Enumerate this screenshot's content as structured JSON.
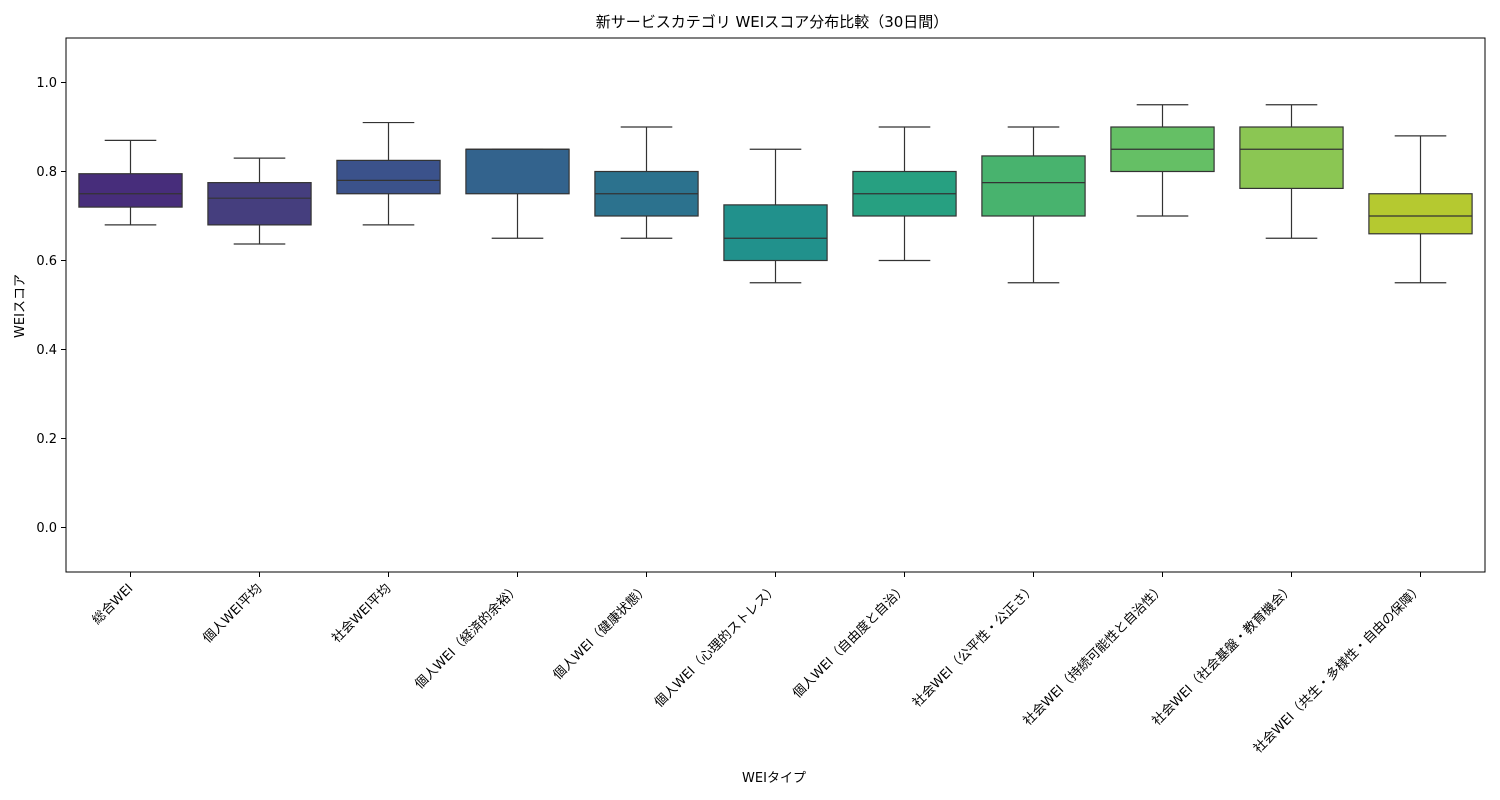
{
  "chart_data": {
    "type": "box",
    "title": "新サービスカテゴリ WEIスコア分布比較（30日間）",
    "xlabel": "WEIタイプ",
    "ylabel": "WEIスコア",
    "ylim": [
      -0.1,
      1.1
    ],
    "yticks": [
      0.0,
      0.2,
      0.4,
      0.6,
      0.8,
      1.0
    ],
    "yticklabels": [
      "0.0",
      "0.2",
      "0.4",
      "0.6",
      "0.8",
      "1.0"
    ],
    "grid": false,
    "legend": "none",
    "categories": [
      "総合WEI",
      "個人WEI平均",
      "社会WEI平均",
      "個人WEI（経済的余裕）",
      "個人WEI（健康状態）",
      "個人WEI（心理的ストレス）",
      "個人WEI（自由度と自治）",
      "社会WEI（公平性・公正さ）",
      "社会WEI（持続可能性と自治性）",
      "社会WEI（社会基盤・教育機会）",
      "社会WEI（共生・多様性・自由の保障）"
    ],
    "boxes": [
      {
        "whisker_low": 0.68,
        "q1": 0.72,
        "median": 0.75,
        "q3": 0.795,
        "whisker_high": 0.87,
        "color": "#472d7b"
      },
      {
        "whisker_low": 0.637,
        "q1": 0.68,
        "median": 0.74,
        "q3": 0.775,
        "whisker_high": 0.83,
        "color": "#453e7e"
      },
      {
        "whisker_low": 0.68,
        "q1": 0.75,
        "median": 0.78,
        "q3": 0.825,
        "whisker_high": 0.91,
        "color": "#3b528b"
      },
      {
        "whisker_low": 0.65,
        "q1": 0.75,
        "median": 0.85,
        "q3": 0.85,
        "whisker_high": 0.85,
        "color": "#33638d"
      },
      {
        "whisker_low": 0.65,
        "q1": 0.7,
        "median": 0.75,
        "q3": 0.8,
        "whisker_high": 0.9,
        "color": "#2c728e"
      },
      {
        "whisker_low": 0.55,
        "q1": 0.6,
        "median": 0.65,
        "q3": 0.725,
        "whisker_high": 0.85,
        "color": "#21918c"
      },
      {
        "whisker_low": 0.6,
        "q1": 0.7,
        "median": 0.75,
        "q3": 0.8,
        "whisker_high": 0.9,
        "color": "#27a081"
      },
      {
        "whisker_low": 0.55,
        "q1": 0.7,
        "median": 0.775,
        "q3": 0.835,
        "whisker_high": 0.9,
        "color": "#48b36e"
      },
      {
        "whisker_low": 0.7,
        "q1": 0.8,
        "median": 0.85,
        "q3": 0.9,
        "whisker_high": 0.95,
        "color": "#65bf65"
      },
      {
        "whisker_low": 0.65,
        "q1": 0.762,
        "median": 0.85,
        "q3": 0.9,
        "whisker_high": 0.95,
        "color": "#8bc653"
      },
      {
        "whisker_low": 0.55,
        "q1": 0.66,
        "median": 0.7,
        "q3": 0.75,
        "whisker_high": 0.88,
        "color": "#b5c930"
      }
    ]
  }
}
